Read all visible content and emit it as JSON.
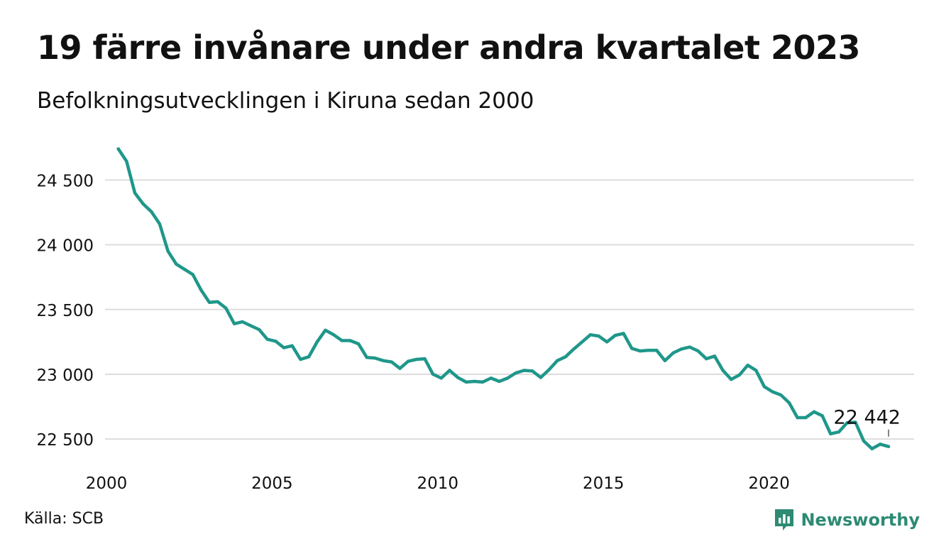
{
  "header": {
    "title": "19 färre invånare under andra kvartalet 2023",
    "subtitle": "Befolkningsutvecklingen i Kiruna sedan 2000"
  },
  "footer": {
    "source": "Källa: SCB",
    "brand": "Newsworthy",
    "brand_icon": "newsworthy-logo-icon"
  },
  "colors": {
    "line": "#1f978a",
    "grid": "#dddddd",
    "text": "#111111",
    "brand": "#2d8a74"
  },
  "chart_data": {
    "type": "line",
    "title": "19 färre invånare under andra kvartalet 2023",
    "subtitle": "Befolkningsutvecklingen i Kiruna sedan 2000",
    "xlabel": "",
    "ylabel": "",
    "xlim": [
      2000,
      2023.5
    ],
    "ylim": [
      22380,
      24760
    ],
    "grid": true,
    "x_ticks": [
      2000,
      2005,
      2010,
      2015,
      2020
    ],
    "x_tick_labels": [
      "2000",
      "2005",
      "2010",
      "2015",
      "2020"
    ],
    "y_ticks": [
      22500,
      23000,
      23500,
      24000,
      24500
    ],
    "y_tick_labels": [
      "22 500",
      "23 000",
      "23 500",
      "24 000",
      "24 500"
    ],
    "annotation": {
      "x": 2023.5,
      "y": 22442,
      "label": "22 442"
    },
    "series": [
      {
        "x": [
          2000.25,
          2000.5,
          2000.75,
          2001,
          2001.25,
          2001.5,
          2001.75,
          2002,
          2002.25,
          2002.5,
          2002.75,
          2003,
          2003.25,
          2003.5,
          2003.75,
          2004,
          2004.25,
          2004.5,
          2004.75,
          2005,
          2005.25,
          2005.5,
          2005.75,
          2006,
          2006.25,
          2006.5,
          2006.75,
          2007,
          2007.25,
          2007.5,
          2007.75,
          2008,
          2008.25,
          2008.5,
          2008.75,
          2009,
          2009.25,
          2009.5,
          2009.75,
          2010,
          2010.25,
          2010.5,
          2010.75,
          2011,
          2011.25,
          2011.5,
          2011.75,
          2012,
          2012.25,
          2012.5,
          2012.75,
          2013,
          2013.25,
          2013.5,
          2013.75,
          2014,
          2014.25,
          2014.5,
          2014.75,
          2015,
          2015.25,
          2015.5,
          2015.75,
          2016,
          2016.25,
          2016.5,
          2016.75,
          2017,
          2017.25,
          2017.5,
          2017.75,
          2018,
          2018.25,
          2018.5,
          2018.75,
          2019,
          2019.25,
          2019.5,
          2019.75,
          2020,
          2020.25,
          2020.5,
          2020.75,
          2021,
          2021.25,
          2021.5,
          2021.75,
          2022,
          2022.25,
          2022.5,
          2022.75,
          2023,
          2023.25,
          2023.5
        ],
        "values": [
          24740,
          24645,
          24400,
          24315,
          24255,
          24160,
          23950,
          23850,
          23810,
          23770,
          23650,
          23555,
          23560,
          23510,
          23390,
          23405,
          23375,
          23345,
          23270,
          23255,
          23205,
          23220,
          23115,
          23135,
          23250,
          23340,
          23305,
          23260,
          23260,
          23235,
          23130,
          23125,
          23105,
          23095,
          23045,
          23100,
          23115,
          23120,
          23000,
          22970,
          23030,
          22975,
          22940,
          22945,
          22940,
          22970,
          22945,
          22970,
          23010,
          23030,
          23025,
          22975,
          23035,
          23105,
          23135,
          23195,
          23250,
          23305,
          23295,
          23250,
          23300,
          23315,
          23200,
          23180,
          23185,
          23185,
          23105,
          23165,
          23195,
          23210,
          23180,
          23120,
          23140,
          23030,
          22960,
          22995,
          23070,
          23030,
          22905,
          22865,
          22840,
          22780,
          22665,
          22665,
          22710,
          22680,
          22540,
          22555,
          22625,
          22630,
          22485,
          22425,
          22460,
          22442
        ]
      }
    ]
  }
}
